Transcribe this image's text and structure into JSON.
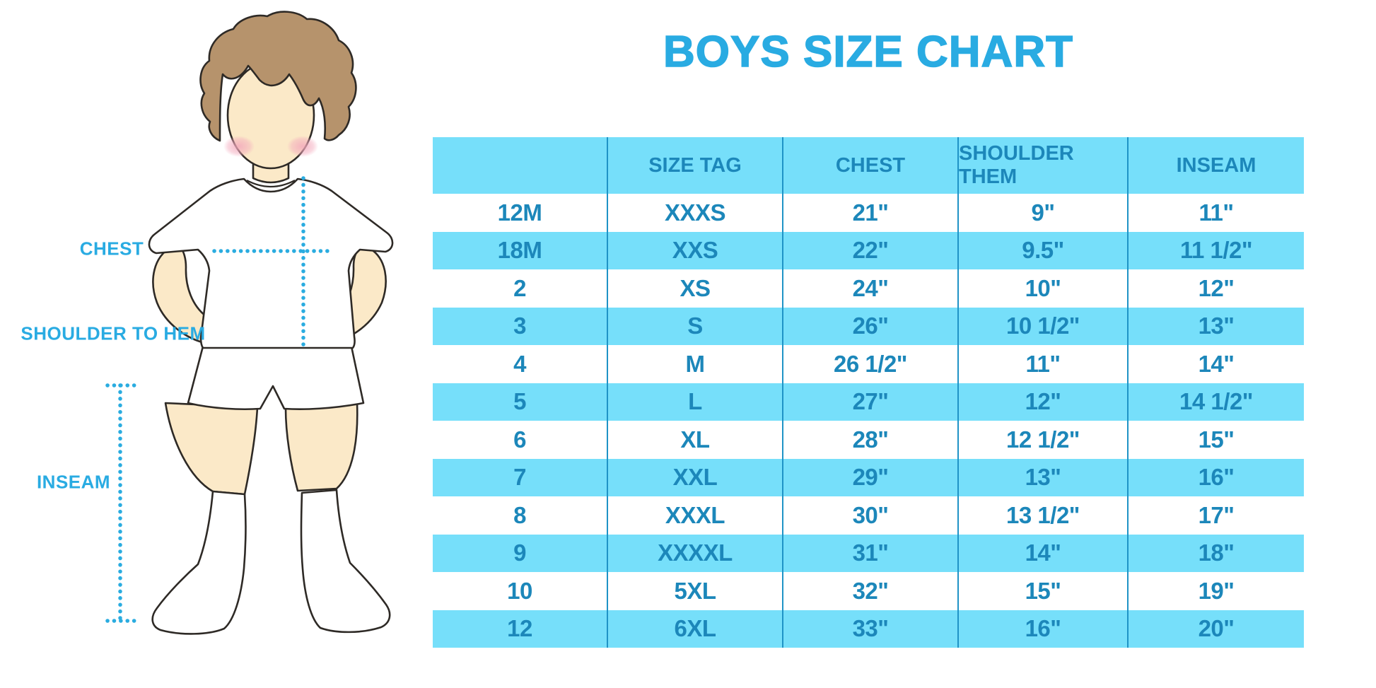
{
  "title": "BOYS SIZE CHART",
  "measurement_labels": {
    "chest": "CHEST",
    "shoulder_to_hem": "SHOULDER TO HEM",
    "inseam": "INSEAM"
  },
  "table": {
    "headers": [
      "",
      "SIZE TAG",
      "CHEST",
      "SHOULDER THEM",
      "INSEAM"
    ]
  },
  "chart_data": {
    "type": "table",
    "title": "BOYS SIZE CHART",
    "columns": [
      "",
      "SIZE TAG",
      "CHEST",
      "SHOULDER THEM",
      "INSEAM"
    ],
    "rows": [
      [
        "12M",
        "XXXS",
        "21\"",
        "9\"",
        "11\""
      ],
      [
        "18M",
        "XXS",
        "22\"",
        "9.5\"",
        "11 1/2\""
      ],
      [
        "2",
        "XS",
        "24\"",
        "10\"",
        "12\""
      ],
      [
        "3",
        "S",
        "26\"",
        "10 1/2\"",
        "13\""
      ],
      [
        "4",
        "M",
        "26 1/2\"",
        "11\"",
        "14\""
      ],
      [
        "5",
        "L",
        "27\"",
        "12\"",
        "14 1/2\""
      ],
      [
        "6",
        "XL",
        "28\"",
        "12 1/2\"",
        "15\""
      ],
      [
        "7",
        "XXL",
        "29\"",
        "13\"",
        "16\""
      ],
      [
        "8",
        "XXXL",
        "30\"",
        "13 1/2\"",
        "17\""
      ],
      [
        "9",
        "XXXXL",
        "31\"",
        "14\"",
        "18\""
      ],
      [
        "10",
        "5XL",
        "32\"",
        "15\"",
        "19\""
      ],
      [
        "12",
        "6XL",
        "33\"",
        "16\"",
        "20\""
      ]
    ],
    "stripe_style": "alternating rows white / cyan starting with white",
    "colors": {
      "accent_title": "#29ABE2",
      "row_stripe": "#76DFFA",
      "table_text": "#1C87BA",
      "column_divider": "#1F93C6",
      "dotted_measure_line": "#2AACE0",
      "skin": "#FBE9C8",
      "hair": "#B6936C"
    }
  }
}
